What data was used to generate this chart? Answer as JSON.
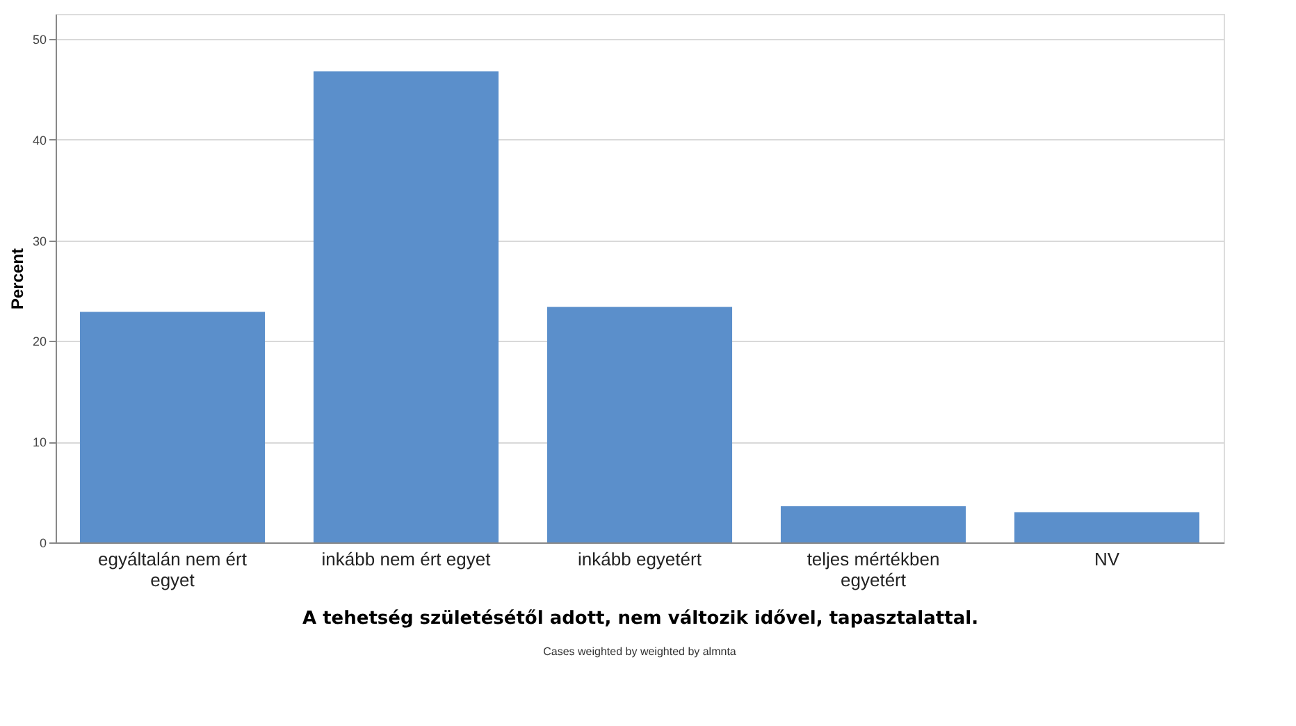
{
  "chart_data": {
    "type": "bar",
    "xlabel": "A tehetség születésétől adott, nem változik idővel, tapasztalattal.",
    "ylabel": "Percent",
    "annotations": [
      "Cases weighted by weighted by almnta"
    ],
    "categories": [
      "egyáltalán nem ért egyet",
      "inkább nem ért egyet",
      "inkább egyetért",
      "teljes mértékben egyetért",
      "NV"
    ],
    "values": [
      22.9,
      46.8,
      23.4,
      3.6,
      3.0
    ],
    "color": "#5b8fcb",
    "ylim": [
      0,
      52.5
    ],
    "yticks": [
      0,
      10,
      20,
      30,
      40,
      50
    ],
    "grid": "y"
  }
}
